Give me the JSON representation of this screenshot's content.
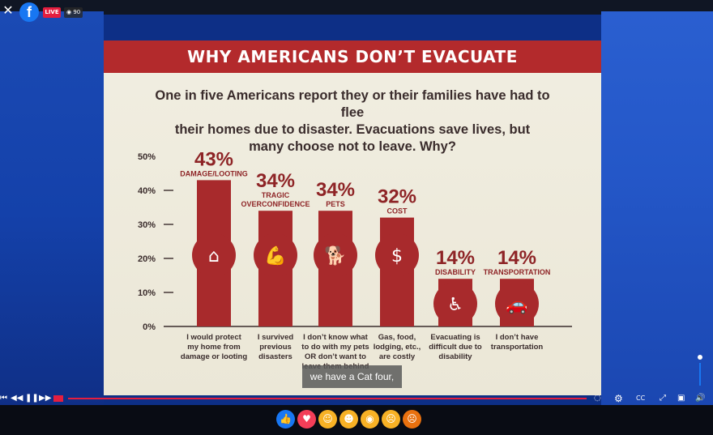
{
  "header": {
    "live_label": "LIVE",
    "viewer_count": "90"
  },
  "slide": {
    "title": "WHY AMERICANS DON’T EVACUATE",
    "subtitle_lines": [
      "One in five Americans report they or their families have had to flee",
      "their homes due to disaster. Evacuations save lives, but",
      "many choose not to leave. Why?"
    ]
  },
  "chart_data": {
    "type": "bar",
    "title": "WHY AMERICANS DON’T EVACUATE",
    "yticks": [
      "0%",
      "10%",
      "20%",
      "30%",
      "40%",
      "50%"
    ],
    "ylim": [
      0,
      50
    ],
    "categories": [
      "DAMAGE/LOOTING",
      "TRAGIC OVERCONFIDENCE",
      "PETS",
      "COST",
      "DISABILITY",
      "TRANSPORTATION"
    ],
    "category_lines": [
      [
        "DAMAGE/LOOTING"
      ],
      [
        "TRAGIC",
        "OVERCONFIDENCE"
      ],
      [
        "PETS"
      ],
      [
        "COST"
      ],
      [
        "DISABILITY"
      ],
      [
        "TRANSPORTATION"
      ]
    ],
    "values": [
      43,
      34,
      34,
      32,
      14,
      14
    ],
    "value_labels": [
      "43%",
      "34%",
      "34%",
      "32%",
      "14%",
      "14%"
    ],
    "icons": [
      "house-icon",
      "muscle-icon",
      "dog-icon",
      "dollar-icon",
      "wheelchair-icon",
      "car-icon"
    ],
    "descriptions": [
      [
        "I would protect",
        "my home from",
        "damage or looting"
      ],
      [
        "I survived",
        "previous",
        "disasters"
      ],
      [
        "I don’t know what",
        "to do with my pets",
        "OR don’t want to",
        "leave them behind"
      ],
      [
        "Gas, food,",
        "lodging, etc.,",
        "are costly"
      ],
      [
        "Evacuating is",
        "difficult due to",
        "disability"
      ],
      [
        "I don’t have",
        "transportation"
      ]
    ],
    "colors": {
      "bar": "#a82a2c",
      "text": "#8e2426",
      "axis": "#3a2c2c"
    }
  },
  "caption": "we have a Cat four,",
  "colors": {
    "banner": "#b32a2c",
    "facebook": "#1877f2",
    "live": "#e41e3f"
  }
}
